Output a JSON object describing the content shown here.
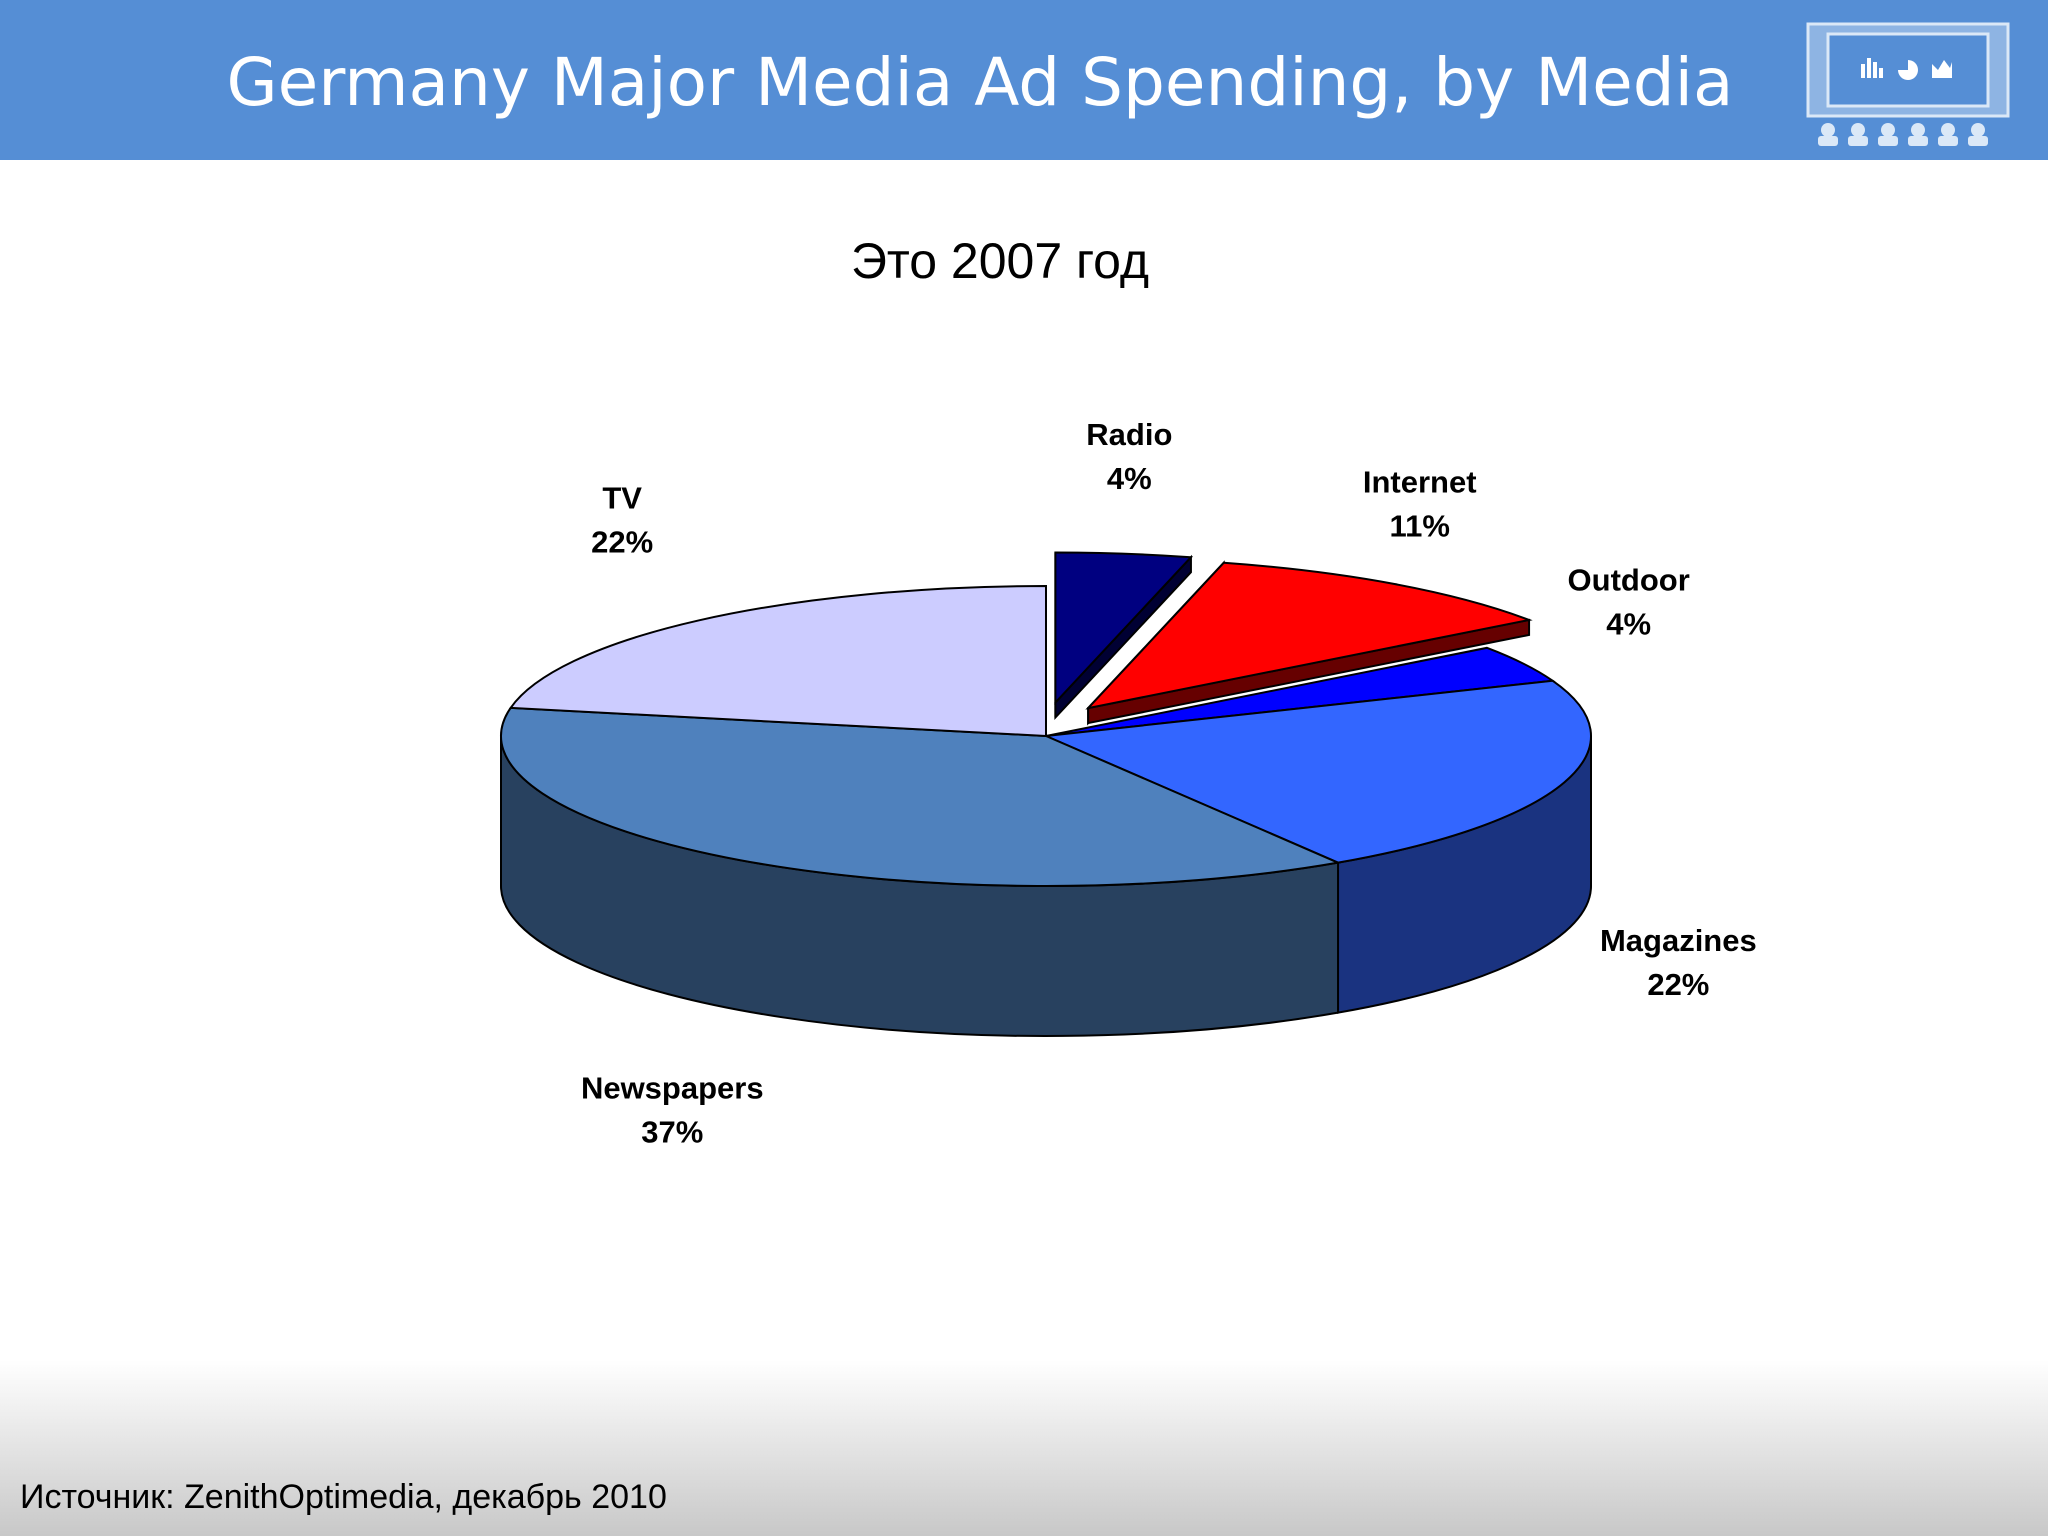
{
  "slide": {
    "title": "Germany Major Media Ad Spending, by Media",
    "source": "Источник: ZenithOptimedia, декабрь 2010"
  },
  "logo": {
    "icon": "presentation-audience-icon"
  },
  "chart_data": {
    "type": "pie",
    "variant": "3d-exploded",
    "title": "Это 2007 год",
    "start_angle_deg": 90,
    "direction": "clockwise",
    "slices": [
      {
        "label": "Radio",
        "value": 4,
        "value_label": "4%",
        "color": "#000080",
        "exploded": true
      },
      {
        "label": "Internet",
        "value": 11,
        "value_label": "11%",
        "color": "#ff0000",
        "exploded": true
      },
      {
        "label": "Outdoor",
        "value": 4,
        "value_label": "4%",
        "color": "#0000ff",
        "exploded": false
      },
      {
        "label": "Magazines",
        "value": 22,
        "value_label": "22%",
        "color": "#3366ff",
        "exploded": false
      },
      {
        "label": "Newspapers",
        "value": 37,
        "value_label": "37%",
        "color": "#4f81bd",
        "exploded": false
      },
      {
        "label": "TV",
        "value": 22,
        "value_label": "22%",
        "color": "#ccccff",
        "exploded": false
      }
    ]
  }
}
